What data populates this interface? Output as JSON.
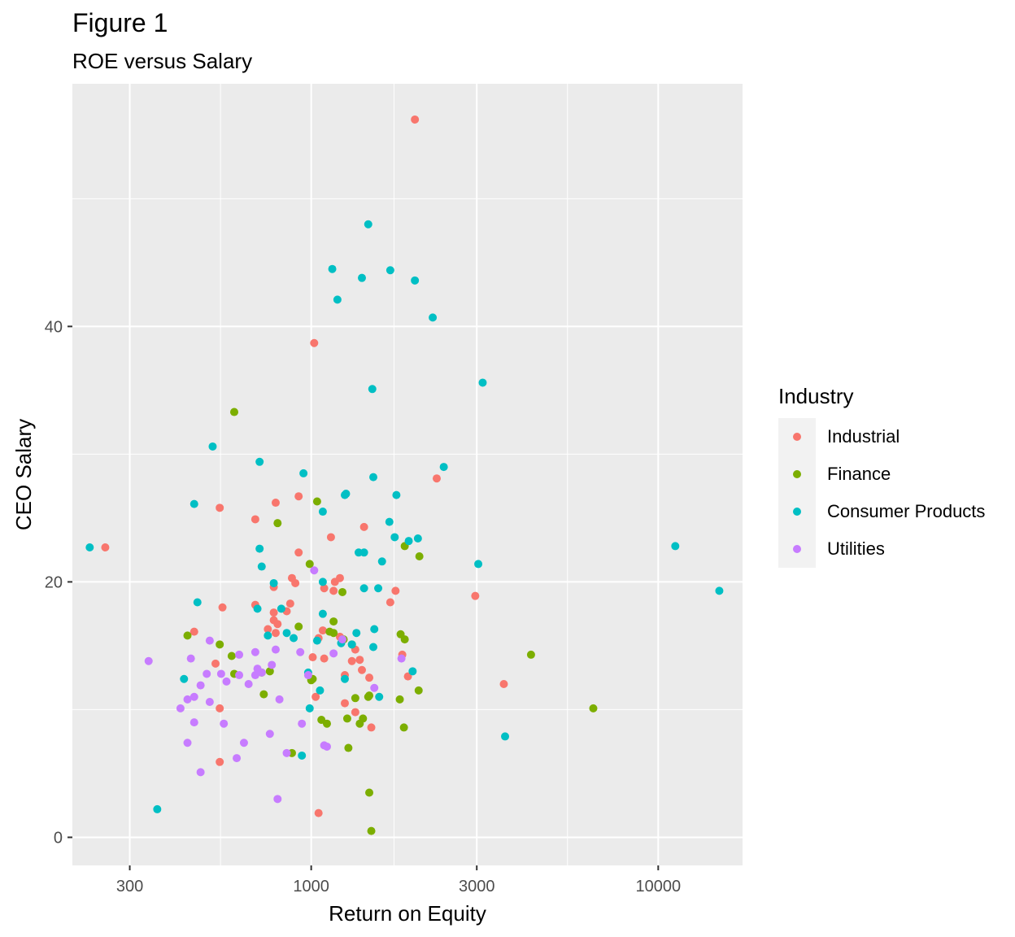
{
  "title": "Figure 1",
  "subtitle": "ROE versus Salary",
  "colors": {
    "Industrial": "#f8766d",
    "Finance": "#7cae00",
    "Consumer Products": "#00bfc4",
    "Utilities": "#c77cff",
    "panel_bg": "#ebebeb",
    "grid": "#ffffff"
  },
  "chart_data": {
    "type": "scatter",
    "xlabel": "Return on Equity",
    "ylabel": "CEO Salary",
    "x_scale": "log10",
    "xlim": [
      205,
      17500
    ],
    "ylim": [
      -2.2,
      59
    ],
    "x_ticks": [
      300,
      1000,
      3000,
      10000
    ],
    "x_tick_labels": [
      "300",
      "1000",
      "3000",
      "10000"
    ],
    "y_ticks": [
      0,
      20,
      40
    ],
    "y_tick_labels": [
      "0",
      "20",
      "40"
    ],
    "grid": true,
    "legend": {
      "title": "Industry",
      "position": "right"
    },
    "series": [
      {
        "name": "Industrial",
        "points": [
          [
            1990,
            56.2
          ],
          [
            1020,
            38.7
          ],
          [
            2300,
            28.1
          ],
          [
            545,
            25.8
          ],
          [
            790,
            26.2
          ],
          [
            920,
            26.7
          ],
          [
            690,
            24.9
          ],
          [
            1420,
            24.3
          ],
          [
            1140,
            23.5
          ],
          [
            255,
            22.7
          ],
          [
            920,
            22.3
          ],
          [
            880,
            20.3
          ],
          [
            1170,
            20.0
          ],
          [
            1210,
            20.3
          ],
          [
            780,
            19.6
          ],
          [
            900,
            19.9
          ],
          [
            1160,
            19.3
          ],
          [
            1090,
            19.5
          ],
          [
            1750,
            19.3
          ],
          [
            2970,
            18.9
          ],
          [
            1690,
            18.4
          ],
          [
            690,
            18.2
          ],
          [
            555,
            18.0
          ],
          [
            780,
            17.6
          ],
          [
            850,
            17.7
          ],
          [
            870,
            18.3
          ],
          [
            780,
            17.0
          ],
          [
            800,
            16.7
          ],
          [
            750,
            16.3
          ],
          [
            1080,
            16.2
          ],
          [
            460,
            16.1
          ],
          [
            790,
            16.0
          ],
          [
            1210,
            15.7
          ],
          [
            1050,
            15.6
          ],
          [
            1340,
            14.7
          ],
          [
            1310,
            13.8
          ],
          [
            1380,
            13.9
          ],
          [
            1830,
            14.3
          ],
          [
            1010,
            14.1
          ],
          [
            1090,
            14.0
          ],
          [
            530,
            13.6
          ],
          [
            1400,
            13.1
          ],
          [
            1250,
            12.7
          ],
          [
            1900,
            12.6
          ],
          [
            1470,
            12.5
          ],
          [
            3590,
            12.0
          ],
          [
            1250,
            10.5
          ],
          [
            1030,
            11.0
          ],
          [
            1340,
            9.8
          ],
          [
            1490,
            8.6
          ],
          [
            545,
            10.1
          ],
          [
            1050,
            1.9
          ],
          [
            545,
            5.9
          ]
        ]
      },
      {
        "name": "Finance",
        "points": [
          [
            600,
            33.3
          ],
          [
            1040,
            26.3
          ],
          [
            800,
            24.6
          ],
          [
            1860,
            22.8
          ],
          [
            2050,
            22.0
          ],
          [
            990,
            21.4
          ],
          [
            1230,
            19.2
          ],
          [
            1160,
            16.9
          ],
          [
            1160,
            16.0
          ],
          [
            1130,
            16.1
          ],
          [
            920,
            16.5
          ],
          [
            1240,
            15.5
          ],
          [
            1310,
            15.1
          ],
          [
            1810,
            15.9
          ],
          [
            1860,
            15.5
          ],
          [
            440,
            15.8
          ],
          [
            545,
            15.1
          ],
          [
            590,
            14.2
          ],
          [
            4300,
            14.3
          ],
          [
            760,
            13.0
          ],
          [
            1000,
            12.3
          ],
          [
            720,
            12.9
          ],
          [
            600,
            12.8
          ],
          [
            1460,
            11.0
          ],
          [
            1340,
            10.9
          ],
          [
            1470,
            11.1
          ],
          [
            1800,
            10.8
          ],
          [
            2040,
            11.5
          ],
          [
            730,
            11.2
          ],
          [
            6500,
            10.1
          ],
          [
            1010,
            12.4
          ],
          [
            1070,
            9.2
          ],
          [
            1270,
            9.3
          ],
          [
            1380,
            8.9
          ],
          [
            1410,
            9.3
          ],
          [
            1850,
            8.6
          ],
          [
            1110,
            8.9
          ],
          [
            1280,
            7.0
          ],
          [
            880,
            6.6
          ],
          [
            1470,
            3.5
          ],
          [
            1490,
            0.5
          ]
        ]
      },
      {
        "name": "Consumer Products",
        "points": [
          [
            1460,
            48.0
          ],
          [
            1150,
            44.5
          ],
          [
            1690,
            44.4
          ],
          [
            1400,
            43.8
          ],
          [
            1990,
            43.6
          ],
          [
            1190,
            42.1
          ],
          [
            2240,
            40.7
          ],
          [
            3120,
            35.6
          ],
          [
            1500,
            35.1
          ],
          [
            520,
            30.6
          ],
          [
            710,
            29.4
          ],
          [
            950,
            28.5
          ],
          [
            2410,
            29.0
          ],
          [
            1510,
            28.2
          ],
          [
            1250,
            26.8
          ],
          [
            1760,
            26.8
          ],
          [
            1080,
            25.5
          ],
          [
            460,
            26.1
          ],
          [
            1680,
            24.7
          ],
          [
            230,
            22.7
          ],
          [
            11200,
            22.8
          ],
          [
            1740,
            23.5
          ],
          [
            1910,
            23.2
          ],
          [
            2030,
            23.4
          ],
          [
            1260,
            26.9
          ],
          [
            710,
            22.6
          ],
          [
            1420,
            22.3
          ],
          [
            1370,
            22.3
          ],
          [
            1600,
            21.6
          ],
          [
            3030,
            21.4
          ],
          [
            720,
            21.2
          ],
          [
            780,
            19.9
          ],
          [
            1080,
            20.0
          ],
          [
            1420,
            19.5
          ],
          [
            1560,
            19.5
          ],
          [
            15000,
            19.3
          ],
          [
            470,
            18.4
          ],
          [
            700,
            17.9
          ],
          [
            820,
            17.9
          ],
          [
            1080,
            17.5
          ],
          [
            750,
            15.8
          ],
          [
            850,
            16.0
          ],
          [
            890,
            15.6
          ],
          [
            1520,
            16.3
          ],
          [
            1350,
            16.0
          ],
          [
            1220,
            15.2
          ],
          [
            1310,
            15.1
          ],
          [
            1960,
            13.0
          ],
          [
            1040,
            15.4
          ],
          [
            1510,
            14.9
          ],
          [
            430,
            12.4
          ],
          [
            980,
            12.9
          ],
          [
            1250,
            12.4
          ],
          [
            1060,
            11.5
          ],
          [
            1570,
            11.0
          ],
          [
            3620,
            7.9
          ],
          [
            990,
            10.1
          ],
          [
            940,
            6.4
          ],
          [
            360,
            2.2
          ]
        ]
      },
      {
        "name": "Utilities",
        "points": [
          [
            1020,
            20.9
          ],
          [
            510,
            15.4
          ],
          [
            790,
            14.7
          ],
          [
            930,
            14.5
          ],
          [
            1160,
            14.4
          ],
          [
            620,
            14.3
          ],
          [
            690,
            14.5
          ],
          [
            340,
            13.8
          ],
          [
            450,
            14.0
          ],
          [
            700,
            13.2
          ],
          [
            770,
            13.5
          ],
          [
            980,
            12.7
          ],
          [
            550,
            12.8
          ],
          [
            620,
            12.7
          ],
          [
            690,
            12.7
          ],
          [
            720,
            12.9
          ],
          [
            500,
            12.8
          ],
          [
            480,
            11.9
          ],
          [
            570,
            12.2
          ],
          [
            660,
            12.0
          ],
          [
            1520,
            11.7
          ],
          [
            440,
            10.8
          ],
          [
            460,
            11.0
          ],
          [
            510,
            10.6
          ],
          [
            420,
            10.1
          ],
          [
            460,
            9.0
          ],
          [
            560,
            8.9
          ],
          [
            810,
            10.8
          ],
          [
            940,
            8.9
          ],
          [
            760,
            8.1
          ],
          [
            1090,
            7.2
          ],
          [
            1110,
            7.1
          ],
          [
            640,
            7.4
          ],
          [
            440,
            7.4
          ],
          [
            850,
            6.6
          ],
          [
            610,
            6.2
          ],
          [
            480,
            5.1
          ],
          [
            800,
            3.0
          ],
          [
            1820,
            14.0
          ],
          [
            1230,
            15.5
          ]
        ]
      }
    ]
  }
}
